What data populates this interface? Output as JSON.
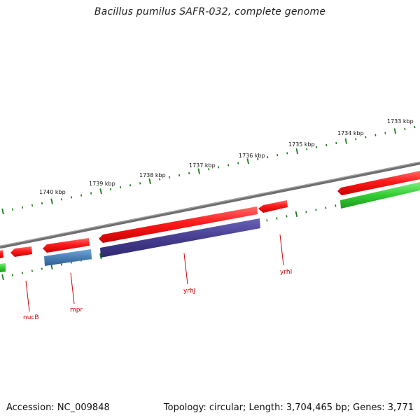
{
  "title": "Bacillus pumilus SAFR-032, complete genome",
  "footer": {
    "accession": "Accession: NC_009848",
    "topology": "Topology: circular; Length: 3,704,465 bp; Genes: 3,771"
  },
  "colors": {
    "backbone": "#808080",
    "forward_cds": "#e41a1c",
    "reverse_cds": "#e41a1c",
    "blast_hit_blue": "#4a7fb5",
    "blast_hit_purple": "#4b4396",
    "blast_hit_green": "#33cc33",
    "gc_ticks": "#1a7a1a",
    "gene_label": "#c00000"
  },
  "tick_labels": [
    "1733 kbp",
    "1734 kbp",
    "1735 kbp",
    "1736 kbp",
    "1737 kbp",
    "1738 kbp",
    "1739 kbp",
    "1740 kbp"
  ],
  "gene_labels": [
    "nucB",
    "mpr",
    "yrhJ",
    "yrhI"
  ]
}
